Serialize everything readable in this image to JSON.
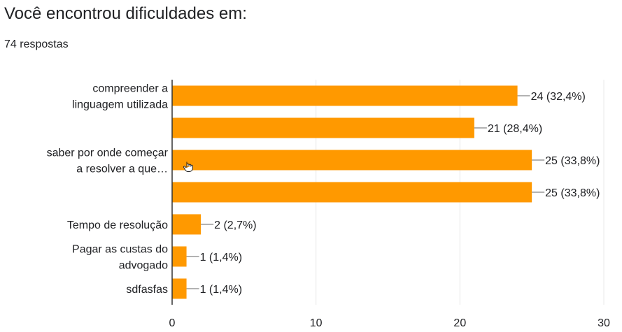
{
  "question_title": "Você encontrou dificuldades em:",
  "response_count": "74 respostas",
  "colors": {
    "bar": "#ff9900",
    "grid": "#e8e8e8",
    "axis": "#333333",
    "text": "#202124"
  },
  "icons": {
    "cursor": "hand-pointer-icon"
  },
  "chart_data": {
    "type": "bar",
    "orientation": "horizontal",
    "categories": [
      [
        "compreender a",
        "linguagem utilizada"
      ],
      [],
      [
        "saber por onde começar",
        "a resolver a que…"
      ],
      [],
      [
        "Tempo de resolução"
      ],
      [
        "Pagar as custas do",
        "advogado"
      ],
      [
        "sdfasfas"
      ]
    ],
    "values": [
      24,
      21,
      25,
      25,
      2,
      1,
      1
    ],
    "data_labels": [
      "24 (32,4%)",
      "21 (28,4%)",
      "25 (33,8%)",
      "25 (33,8%)",
      "2 (2,7%)",
      "1 (1,4%)",
      "1 (1,4%)"
    ],
    "xlim": [
      0,
      30
    ],
    "xticks": [
      0,
      10,
      20,
      30
    ],
    "grid": true,
    "title": "",
    "xlabel": "",
    "ylabel": ""
  }
}
